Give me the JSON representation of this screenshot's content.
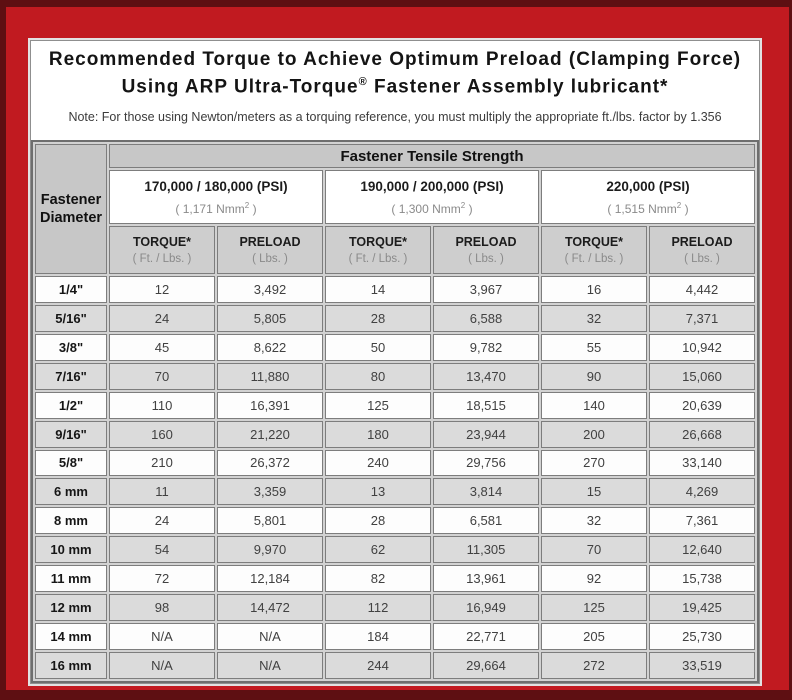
{
  "frame": {
    "outer_edge_color": "#5e0f12",
    "red_color": "#c11a20"
  },
  "title": {
    "line1": "Recommended Torque to Achieve Optimum Preload (Clamping Force)",
    "line2_pre": "Using ARP Ultra-Torque",
    "line2_sup": "®",
    "line2_post": " Fastener Assembly lubricant*"
  },
  "note": "Note: For those using Newton/meters as a torquing reference, you must multiply the appropriate ft./lbs. factor by 1.356",
  "table": {
    "tensile_header": "Fastener Tensile Strength",
    "diameter_header": "Fastener Diameter",
    "groups": [
      {
        "psi": "170,000 / 180,000 (PSI)",
        "nmm_pre": "( 1,171 Nmm",
        "nmm_sup": "2",
        "nmm_post": " )"
      },
      {
        "psi": "190,000 / 200,000 (PSI)",
        "nmm_pre": "( 1,300 Nmm",
        "nmm_sup": "2",
        "nmm_post": " )"
      },
      {
        "psi": "220,000 (PSI)",
        "nmm_pre": "( 1,515 Nmm",
        "nmm_sup": "2",
        "nmm_post": " )"
      }
    ],
    "col_headers": {
      "torque": "TORQUE*",
      "torque_sub": "( Ft. / Lbs. )",
      "preload": "PRELOAD",
      "preload_sub": "( Lbs. )"
    },
    "rows": [
      {
        "d": "1/4\"",
        "v": [
          "12",
          "3,492",
          "14",
          "3,967",
          "16",
          "4,442"
        ]
      },
      {
        "d": "5/16\"",
        "v": [
          "24",
          "5,805",
          "28",
          "6,588",
          "32",
          "7,371"
        ]
      },
      {
        "d": "3/8\"",
        "v": [
          "45",
          "8,622",
          "50",
          "9,782",
          "55",
          "10,942"
        ]
      },
      {
        "d": "7/16\"",
        "v": [
          "70",
          "11,880",
          "80",
          "13,470",
          "90",
          "15,060"
        ]
      },
      {
        "d": "1/2\"",
        "v": [
          "110",
          "16,391",
          "125",
          "18,515",
          "140",
          "20,639"
        ]
      },
      {
        "d": "9/16\"",
        "v": [
          "160",
          "21,220",
          "180",
          "23,944",
          "200",
          "26,668"
        ]
      },
      {
        "d": "5/8\"",
        "v": [
          "210",
          "26,372",
          "240",
          "29,756",
          "270",
          "33,140"
        ]
      },
      {
        "d": "6 mm",
        "v": [
          "11",
          "3,359",
          "13",
          "3,814",
          "15",
          "4,269"
        ]
      },
      {
        "d": "8 mm",
        "v": [
          "24",
          "5,801",
          "28",
          "6,581",
          "32",
          "7,361"
        ]
      },
      {
        "d": "10 mm",
        "v": [
          "54",
          "9,970",
          "62",
          "11,305",
          "70",
          "12,640"
        ]
      },
      {
        "d": "11 mm",
        "v": [
          "72",
          "12,184",
          "82",
          "13,961",
          "92",
          "15,738"
        ]
      },
      {
        "d": "12 mm",
        "v": [
          "98",
          "14,472",
          "112",
          "16,949",
          "125",
          "19,425"
        ]
      },
      {
        "d": "14 mm",
        "v": [
          "N/A",
          "N/A",
          "184",
          "22,771",
          "205",
          "25,730"
        ]
      },
      {
        "d": "16 mm",
        "v": [
          "N/A",
          "N/A",
          "244",
          "29,664",
          "272",
          "33,519"
        ]
      }
    ]
  },
  "colors": {
    "header_gray": "#c7c7c7",
    "row_gray": "#dbdbdb",
    "row_white": "#fdfdfd",
    "cell_border": "#7d7d7d"
  }
}
